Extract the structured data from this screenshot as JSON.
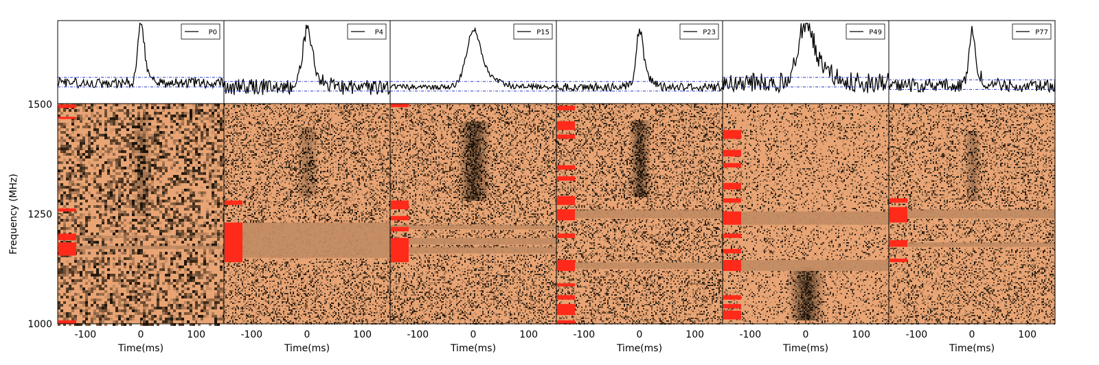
{
  "chart_data": {
    "type": "heatmap",
    "description_free": true,
    "ylabel": "Frequency (MHz)",
    "xlabel": "Time(ms)",
    "xlim": [
      -150,
      150
    ],
    "ylim": [
      1000,
      1500
    ],
    "xticks": [
      -100,
      0,
      100
    ],
    "yticks": [
      1000,
      1250,
      1500
    ],
    "colors": {
      "background": "#e8a474",
      "dark": "#1a1208",
      "mask": "#ff2a1a",
      "masked_row": "#a87a58",
      "line": "#000000",
      "baseline": "#2233cc"
    },
    "panels": [
      {
        "name": "P0",
        "peak_time": 0,
        "peak_height": 0.95,
        "width": 5,
        "noise": 0.22,
        "baseline_offset": 0.25,
        "burst_lo": 1250,
        "burst_hi": 1470,
        "burst_strength": 0.35,
        "grain": 4,
        "contrast": 0.55,
        "mask_bands": [
          [
            1490,
            1498
          ],
          [
            1465,
            1470
          ],
          [
            1255,
            1262
          ],
          [
            1190,
            1205
          ],
          [
            1155,
            1185
          ],
          [
            1000,
            1008
          ]
        ],
        "flat_rows": [
          [
            1195,
            1200
          ],
          [
            1170,
            1178
          ]
        ]
      },
      {
        "name": "P4",
        "peak_time": 0,
        "peak_height": 0.85,
        "width": 8,
        "noise": 0.35,
        "baseline_offset": 0.2,
        "burst_lo": 1290,
        "burst_hi": 1450,
        "burst_strength": 0.35,
        "grain": 2,
        "contrast": 0.4,
        "mask_bands": [
          [
            1270,
            1280
          ],
          [
            1140,
            1230
          ]
        ],
        "flat_rows": [
          [
            1200,
            1230
          ],
          [
            1150,
            1200
          ]
        ]
      },
      {
        "name": "P15",
        "peak_time": 0,
        "peak_height": 0.85,
        "width": 12,
        "noise": 0.12,
        "baseline_offset": 0.2,
        "burst_lo": 1280,
        "burst_hi": 1460,
        "burst_strength": 0.75,
        "grain": 2,
        "contrast": 0.4,
        "mask_bands": [
          [
            1492,
            1500
          ],
          [
            1260,
            1280
          ],
          [
            1235,
            1245
          ],
          [
            1210,
            1220
          ],
          [
            1140,
            1195
          ]
        ],
        "flat_rows": [
          [
            1215,
            1225
          ],
          [
            1180,
            1195
          ],
          [
            1160,
            1175
          ]
        ]
      },
      {
        "name": "P23",
        "peak_time": 0,
        "peak_height": 0.85,
        "width": 6,
        "noise": 0.18,
        "baseline_offset": 0.2,
        "burst_lo": 1290,
        "burst_hi": 1465,
        "burst_strength": 0.7,
        "grain": 2,
        "contrast": 0.4,
        "mask_bands": [
          [
            1485,
            1495
          ],
          [
            1440,
            1460
          ],
          [
            1420,
            1430
          ],
          [
            1350,
            1360
          ],
          [
            1325,
            1335
          ],
          [
            1270,
            1290
          ],
          [
            1235,
            1260
          ],
          [
            1195,
            1205
          ],
          [
            1120,
            1145
          ],
          [
            1085,
            1092
          ],
          [
            1055,
            1065
          ],
          [
            1020,
            1045
          ],
          [
            1000,
            1008
          ]
        ],
        "flat_rows": [
          [
            1240,
            1260
          ],
          [
            1125,
            1140
          ]
        ]
      },
      {
        "name": "P49",
        "peak_time": 0,
        "peak_height": 0.9,
        "width": 14,
        "noise": 0.45,
        "baseline_offset": 0.25,
        "burst_lo": 1010,
        "burst_hi": 1130,
        "burst_strength": 0.8,
        "grain": 2,
        "contrast": 0.25,
        "mask_bands": [
          [
            1420,
            1440
          ],
          [
            1380,
            1395
          ],
          [
            1355,
            1365
          ],
          [
            1305,
            1320
          ],
          [
            1275,
            1285
          ],
          [
            1225,
            1255
          ],
          [
            1195,
            1205
          ],
          [
            1160,
            1170
          ],
          [
            1120,
            1145
          ],
          [
            1055,
            1065
          ],
          [
            1035,
            1045
          ],
          [
            1010,
            1030
          ]
        ],
        "flat_rows": [
          [
            1225,
            1255
          ],
          [
            1120,
            1145
          ]
        ]
      },
      {
        "name": "P77",
        "peak_time": 0,
        "peak_height": 0.8,
        "width": 5,
        "noise": 0.3,
        "baseline_offset": 0.22,
        "burst_lo": 1280,
        "burst_hi": 1440,
        "burst_strength": 0.35,
        "grain": 2,
        "contrast": 0.35,
        "mask_bands": [
          [
            1275,
            1285
          ],
          [
            1230,
            1265
          ],
          [
            1175,
            1190
          ],
          [
            1140,
            1148
          ]
        ],
        "flat_rows": [
          [
            1240,
            1260
          ],
          [
            1175,
            1185
          ]
        ]
      }
    ]
  }
}
